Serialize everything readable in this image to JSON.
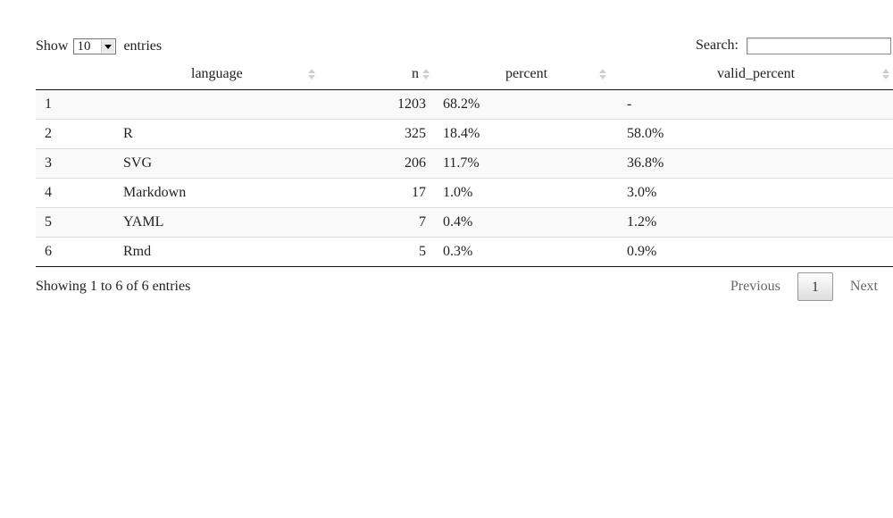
{
  "length_menu": {
    "prefix": "Show",
    "selected": "10",
    "suffix": "entries"
  },
  "search": {
    "label": "Search:",
    "value": ""
  },
  "table": {
    "columns": [
      "",
      "language",
      "n",
      "percent",
      "valid_percent"
    ],
    "rows": [
      [
        "1",
        "",
        "1203",
        "68.2%",
        "-"
      ],
      [
        "2",
        "R",
        "325",
        "18.4%",
        "58.0%"
      ],
      [
        "3",
        "SVG",
        "206",
        "11.7%",
        "36.8%"
      ],
      [
        "4",
        "Markdown",
        "17",
        "1.0%",
        "3.0%"
      ],
      [
        "5",
        "YAML",
        "7",
        "0.4%",
        "1.2%"
      ],
      [
        "6",
        "Rmd",
        "5",
        "0.3%",
        "0.9%"
      ]
    ]
  },
  "info": "Showing 1 to 6 of 6 entries",
  "pagination": {
    "previous": "Previous",
    "current": "1",
    "next": "Next"
  }
}
